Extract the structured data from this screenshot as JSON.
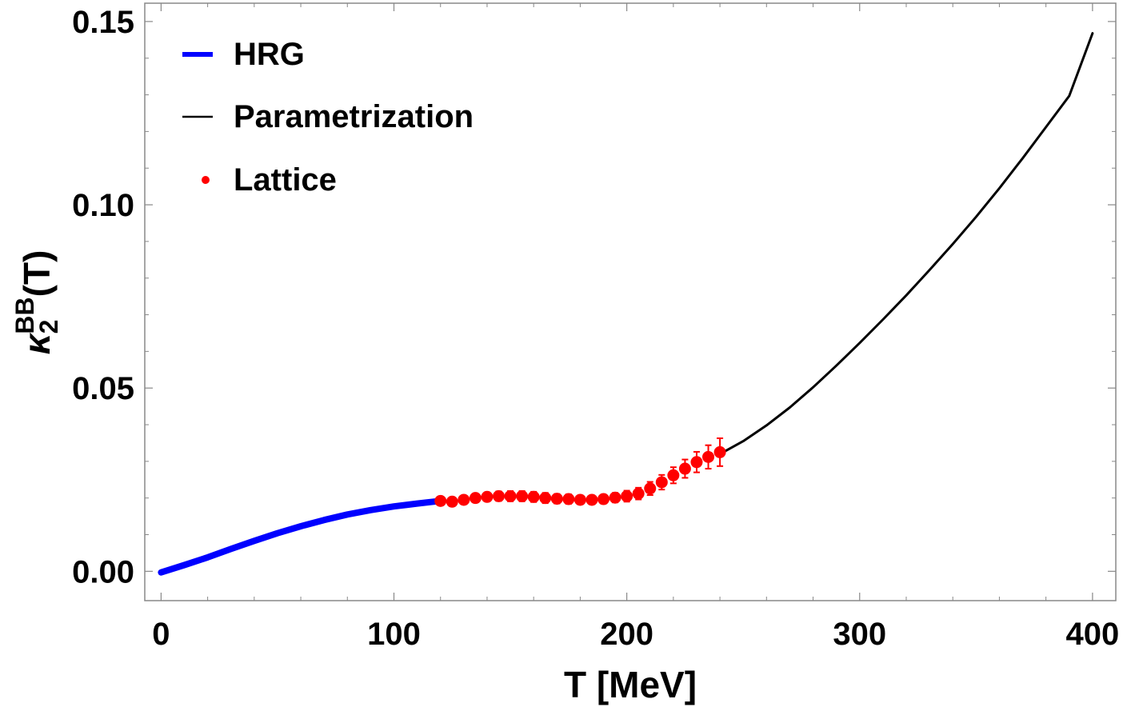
{
  "chart_data": {
    "type": "line",
    "title": "",
    "xlabel": "T [MeV]",
    "ylabel": {
      "base": "κ",
      "subscript": "2",
      "superscript": "BB",
      "suffix": "(T)"
    },
    "xlim": [
      -7,
      410
    ],
    "ylim": [
      -0.008,
      0.155
    ],
    "x_ticks": [
      0,
      100,
      200,
      300,
      400
    ],
    "x_tick_labels": [
      "0",
      "100",
      "200",
      "300",
      "400"
    ],
    "y_ticks": [
      0.0,
      0.05,
      0.1,
      0.15
    ],
    "y_tick_labels": [
      "0.00",
      "0.05",
      "0.10",
      "0.15"
    ],
    "legend": {
      "position": "top-left",
      "entries": [
        {
          "label": "HRG",
          "color": "#0000ff",
          "marker": "line"
        },
        {
          "label": "Parametrization",
          "color": "#000000",
          "marker": "line"
        },
        {
          "label": "Lattice",
          "color": "#ff0000",
          "marker": "dot"
        }
      ]
    },
    "series": [
      {
        "name": "HRG",
        "color": "#0000ff",
        "style": "line",
        "x": [
          0,
          10,
          20,
          30,
          40,
          50,
          60,
          70,
          80,
          90,
          100,
          110,
          120
        ],
        "y": [
          -0.0003,
          0.0017,
          0.0038,
          0.0061,
          0.0083,
          0.0104,
          0.0123,
          0.014,
          0.0155,
          0.0167,
          0.0177,
          0.0185,
          0.0192
        ]
      },
      {
        "name": "Parametrization",
        "color": "#000000",
        "style": "line",
        "x": [
          240,
          250,
          260,
          270,
          280,
          290,
          300,
          310,
          320,
          330,
          340,
          350,
          360,
          370,
          380,
          390,
          400
        ],
        "y": [
          0.032,
          0.0355,
          0.0398,
          0.0447,
          0.0502,
          0.0561,
          0.0623,
          0.0687,
          0.0753,
          0.0822,
          0.0893,
          0.0967,
          0.1045,
          0.1127,
          0.1212,
          0.1297,
          0.1468
        ]
      },
      {
        "name": "Lattice",
        "color": "#ff0000",
        "style": "errorbar",
        "x": [
          120,
          125,
          130,
          135,
          140,
          145,
          150,
          155,
          160,
          165,
          170,
          175,
          180,
          185,
          190,
          195,
          200,
          205,
          210,
          215,
          220,
          225,
          230,
          235,
          240
        ],
        "y": [
          0.0192,
          0.019,
          0.0195,
          0.02,
          0.0203,
          0.0205,
          0.0205,
          0.0205,
          0.0203,
          0.02,
          0.0198,
          0.0197,
          0.0195,
          0.0195,
          0.0197,
          0.0201,
          0.0205,
          0.0212,
          0.0226,
          0.0243,
          0.0262,
          0.028,
          0.0298,
          0.0312,
          0.0325
        ],
        "err": [
          0.0006,
          0.0006,
          0.0008,
          0.001,
          0.0012,
          0.0013,
          0.0014,
          0.0014,
          0.0014,
          0.0014,
          0.0013,
          0.0013,
          0.0012,
          0.0012,
          0.0012,
          0.0013,
          0.0015,
          0.0016,
          0.0018,
          0.002,
          0.0022,
          0.0025,
          0.0028,
          0.0032,
          0.0038
        ]
      }
    ]
  }
}
